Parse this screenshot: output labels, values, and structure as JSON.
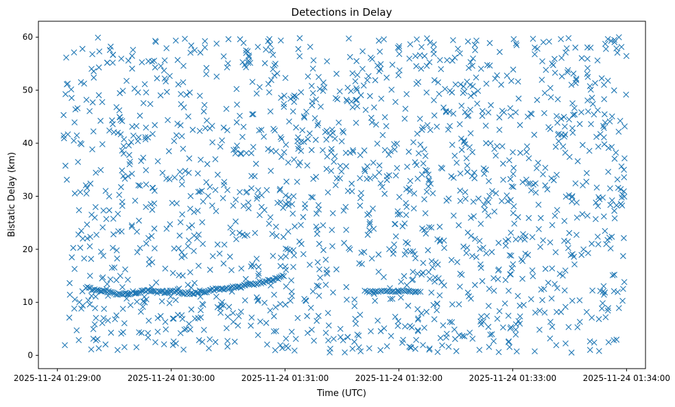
{
  "chart_data": {
    "type": "scatter",
    "title": "Detections in Delay",
    "xlabel": "Time (UTC)",
    "ylabel": "Bistatic Delay (km)",
    "marker": "x",
    "color": "#1f77b4",
    "grid": false,
    "legend": "none",
    "xlim": [
      "2025-11-24 01:28:50",
      "2025-11-24 01:34:10"
    ],
    "ylim": [
      -2.5,
      63
    ],
    "xticks": [
      "2025-11-24 01:29:00",
      "2025-11-24 01:30:00",
      "2025-11-24 01:31:00",
      "2025-11-24 01:32:00",
      "2025-11-24 01:33:00",
      "2025-11-24 01:34:00"
    ],
    "yticks": [
      0,
      10,
      20,
      30,
      40,
      50,
      60
    ],
    "track": {
      "x": [
        "01:29:15",
        "01:29:18",
        "01:29:21",
        "01:29:24",
        "01:29:27",
        "01:29:30",
        "01:29:33",
        "01:29:36",
        "01:29:39",
        "01:29:42",
        "01:29:45",
        "01:29:48",
        "01:29:51",
        "01:29:54",
        "01:29:57",
        "01:30:00",
        "01:30:03",
        "01:30:06",
        "01:30:09",
        "01:30:12",
        "01:30:15",
        "01:30:18",
        "01:30:21",
        "01:30:24",
        "01:30:27",
        "01:30:30",
        "01:30:33",
        "01:30:36",
        "01:30:39",
        "01:30:42",
        "01:30:45",
        "01:30:48",
        "01:30:51",
        "01:30:54",
        "01:30:57",
        "01:31:00"
      ],
      "y": [
        12.8,
        12.5,
        12.3,
        12.1,
        11.9,
        11.7,
        11.6,
        11.6,
        11.8,
        12.0,
        12.1,
        12.1,
        12.0,
        12.0,
        12.0,
        12.1,
        12.0,
        11.8,
        11.7,
        11.8,
        12.0,
        12.1,
        12.3,
        12.5,
        12.6,
        12.7,
        12.9,
        13.0,
        13.2,
        13.4,
        13.6,
        13.8,
        14.0,
        14.3,
        14.6,
        15.1
      ]
    },
    "cluster": {
      "x": [
        "01:31:42",
        "01:31:45",
        "01:31:48",
        "01:31:51",
        "01:31:54",
        "01:31:57",
        "01:32:00",
        "01:32:03",
        "01:32:06",
        "01:32:09",
        "01:32:12"
      ],
      "y": [
        12.1,
        12.0,
        12.1,
        12.2,
        12.1,
        12.0,
        12.1,
        12.2,
        12.1,
        12.0,
        12.1
      ]
    },
    "clutter": {
      "time_range": [
        "2025-11-24 01:29:00",
        "2025-11-24 01:34:00"
      ],
      "delay_range_km": [
        0.5,
        60
      ],
      "approx_count": 1600
    }
  }
}
